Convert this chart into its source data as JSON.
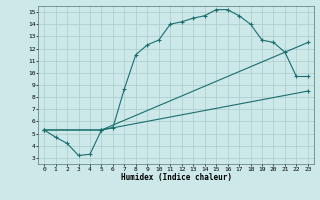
{
  "xlabel": "Humidex (Indice chaleur)",
  "bg_color": "#cce8e8",
  "grid_color": "#aacccc",
  "line_color": "#1a6e6e",
  "xlim": [
    -0.5,
    23.5
  ],
  "ylim": [
    2.5,
    15.5
  ],
  "xticks": [
    0,
    1,
    2,
    3,
    4,
    5,
    6,
    7,
    8,
    9,
    10,
    11,
    12,
    13,
    14,
    15,
    16,
    17,
    18,
    19,
    20,
    21,
    22,
    23
  ],
  "yticks": [
    3,
    4,
    5,
    6,
    7,
    8,
    9,
    10,
    11,
    12,
    13,
    14,
    15
  ],
  "line1_x": [
    0,
    1,
    2,
    3,
    4,
    5,
    6,
    7,
    8,
    9,
    10,
    11,
    12,
    13,
    14,
    15,
    16,
    17,
    18,
    19,
    20,
    21,
    22,
    23
  ],
  "line1_y": [
    5.3,
    4.7,
    4.2,
    3.2,
    3.3,
    5.3,
    5.5,
    8.7,
    11.5,
    12.3,
    12.7,
    14.0,
    14.2,
    14.5,
    14.7,
    15.2,
    15.2,
    14.7,
    14.0,
    12.7,
    12.5,
    11.7,
    9.7,
    9.7
  ],
  "line2_x": [
    0,
    5,
    23
  ],
  "line2_y": [
    5.3,
    5.3,
    8.5
  ],
  "line3_x": [
    0,
    5,
    23
  ],
  "line3_y": [
    5.3,
    5.3,
    12.5
  ]
}
